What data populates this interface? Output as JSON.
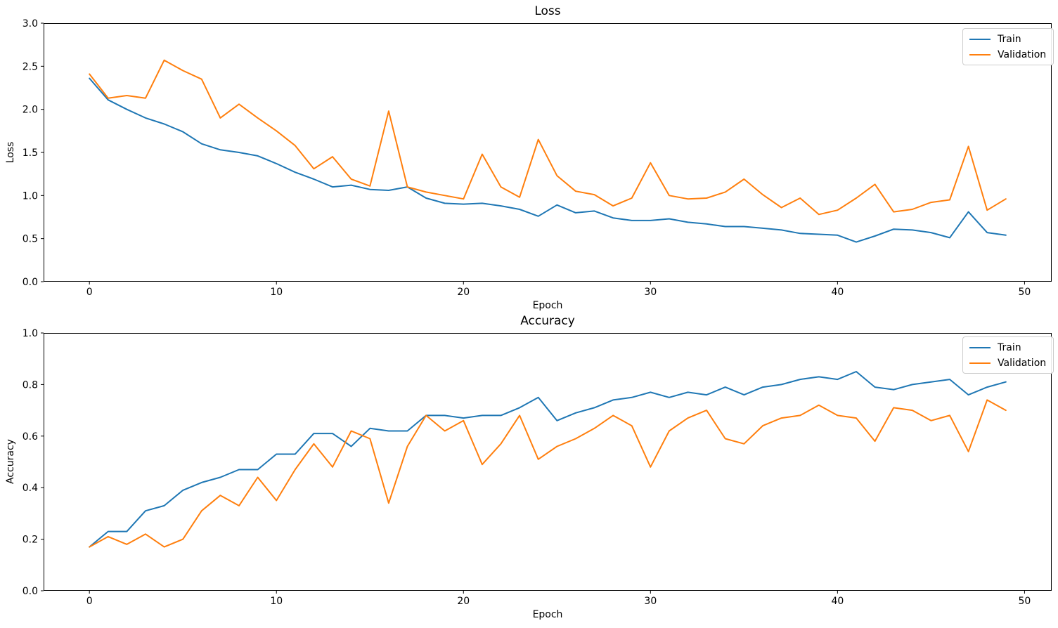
{
  "figure": {
    "background": "#ffffff"
  },
  "colors": {
    "train": "#1f77b4",
    "validation": "#ff7f0e",
    "axis": "#000000",
    "text": "#000000",
    "legend_border": "#cccccc"
  },
  "chart_data": [
    {
      "type": "line",
      "title": "Loss",
      "xlabel": "Epoch",
      "ylabel": "Loss",
      "xlim": [
        -2.45,
        51.45
      ],
      "ylim": [
        0.0,
        3.0
      ],
      "xticks": [
        0,
        10,
        20,
        30,
        40,
        50
      ],
      "xtick_labels": [
        "0",
        "10",
        "20",
        "30",
        "40",
        "50"
      ],
      "yticks": [
        0.0,
        0.5,
        1.0,
        1.5,
        2.0,
        2.5,
        3.0
      ],
      "ytick_labels": [
        "0.0",
        "0.5",
        "1.0",
        "1.5",
        "2.0",
        "2.5",
        "3.0"
      ],
      "grid": false,
      "legend_position": "upper right",
      "x": [
        0,
        1,
        2,
        3,
        4,
        5,
        6,
        7,
        8,
        9,
        10,
        11,
        12,
        13,
        14,
        15,
        16,
        17,
        18,
        19,
        20,
        21,
        22,
        23,
        24,
        25,
        26,
        27,
        28,
        29,
        30,
        31,
        32,
        33,
        34,
        35,
        36,
        37,
        38,
        39,
        40,
        41,
        42,
        43,
        44,
        45,
        46,
        47,
        48,
        49
      ],
      "series": [
        {
          "name": "Train",
          "color": "#1f77b4",
          "values": [
            2.36,
            2.11,
            2.0,
            1.9,
            1.83,
            1.74,
            1.6,
            1.53,
            1.5,
            1.46,
            1.37,
            1.27,
            1.19,
            1.1,
            1.12,
            1.07,
            1.06,
            1.1,
            0.97,
            0.91,
            0.9,
            0.91,
            0.88,
            0.84,
            0.76,
            0.89,
            0.8,
            0.82,
            0.74,
            0.71,
            0.71,
            0.73,
            0.69,
            0.67,
            0.64,
            0.64,
            0.62,
            0.6,
            0.56,
            0.55,
            0.54,
            0.46,
            0.53,
            0.61,
            0.6,
            0.57,
            0.51,
            0.81,
            0.57,
            0.54
          ]
        },
        {
          "name": "Validation",
          "color": "#ff7f0e",
          "values": [
            2.41,
            2.13,
            2.16,
            2.13,
            2.57,
            2.45,
            2.35,
            1.9,
            2.06,
            1.9,
            1.75,
            1.58,
            1.31,
            1.45,
            1.19,
            1.11,
            1.98,
            1.1,
            1.04,
            1.0,
            0.96,
            1.48,
            1.1,
            0.98,
            1.65,
            1.23,
            1.05,
            1.01,
            0.88,
            0.97,
            1.38,
            1.0,
            0.96,
            0.97,
            1.04,
            1.19,
            1.01,
            0.86,
            0.97,
            0.78,
            0.83,
            0.97,
            1.13,
            0.81,
            0.84,
            0.92,
            0.95,
            1.57,
            0.83,
            0.96
          ]
        }
      ]
    },
    {
      "type": "line",
      "title": "Accuracy",
      "xlabel": "Epoch",
      "ylabel": "Accuracy",
      "xlim": [
        -2.45,
        51.45
      ],
      "ylim": [
        0.0,
        1.0
      ],
      "xticks": [
        0,
        10,
        20,
        30,
        40,
        50
      ],
      "xtick_labels": [
        "0",
        "10",
        "20",
        "30",
        "40",
        "50"
      ],
      "yticks": [
        0.0,
        0.2,
        0.4,
        0.6,
        0.8,
        1.0
      ],
      "ytick_labels": [
        "0.0",
        "0.2",
        "0.4",
        "0.6",
        "0.8",
        "1.0"
      ],
      "grid": false,
      "legend_position": "upper right",
      "x": [
        0,
        1,
        2,
        3,
        4,
        5,
        6,
        7,
        8,
        9,
        10,
        11,
        12,
        13,
        14,
        15,
        16,
        17,
        18,
        19,
        20,
        21,
        22,
        23,
        24,
        25,
        26,
        27,
        28,
        29,
        30,
        31,
        32,
        33,
        34,
        35,
        36,
        37,
        38,
        39,
        40,
        41,
        42,
        43,
        44,
        45,
        46,
        47,
        48,
        49
      ],
      "series": [
        {
          "name": "Train",
          "color": "#1f77b4",
          "values": [
            0.17,
            0.23,
            0.23,
            0.31,
            0.33,
            0.39,
            0.42,
            0.44,
            0.47,
            0.47,
            0.53,
            0.53,
            0.61,
            0.61,
            0.56,
            0.63,
            0.62,
            0.62,
            0.68,
            0.68,
            0.67,
            0.68,
            0.68,
            0.71,
            0.75,
            0.66,
            0.69,
            0.71,
            0.74,
            0.75,
            0.77,
            0.75,
            0.77,
            0.76,
            0.79,
            0.76,
            0.79,
            0.8,
            0.82,
            0.83,
            0.82,
            0.85,
            0.79,
            0.78,
            0.8,
            0.81,
            0.82,
            0.76,
            0.79,
            0.81
          ]
        },
        {
          "name": "Validation",
          "color": "#ff7f0e",
          "values": [
            0.17,
            0.21,
            0.18,
            0.22,
            0.17,
            0.2,
            0.31,
            0.37,
            0.33,
            0.44,
            0.35,
            0.47,
            0.57,
            0.48,
            0.62,
            0.59,
            0.34,
            0.56,
            0.68,
            0.62,
            0.66,
            0.49,
            0.57,
            0.68,
            0.51,
            0.56,
            0.59,
            0.63,
            0.68,
            0.64,
            0.48,
            0.62,
            0.67,
            0.7,
            0.59,
            0.57,
            0.64,
            0.67,
            0.68,
            0.72,
            0.68,
            0.67,
            0.58,
            0.71,
            0.7,
            0.66,
            0.68,
            0.54,
            0.74,
            0.7
          ]
        }
      ]
    }
  ],
  "legend": {
    "items": [
      {
        "label": "Train",
        "color": "#1f77b4"
      },
      {
        "label": "Validation",
        "color": "#ff7f0e"
      }
    ]
  }
}
